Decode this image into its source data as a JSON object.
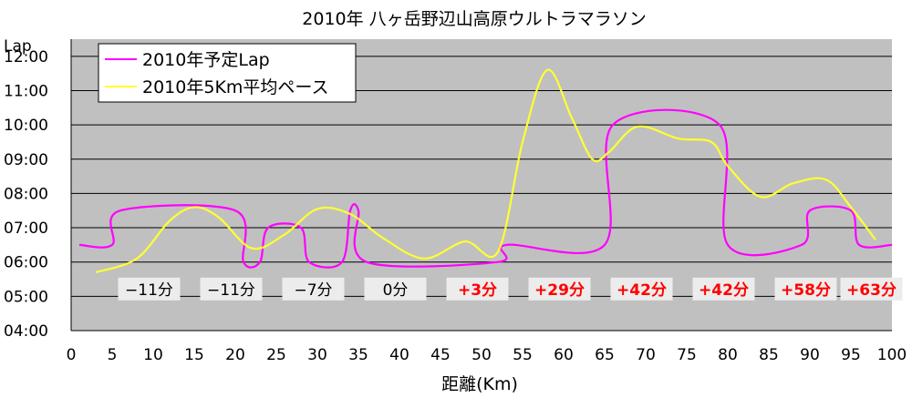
{
  "chart_data": {
    "type": "line",
    "title": "2010年 八ヶ岳野辺山高原ウルトラマラソン",
    "xlabel": "距離(Km)",
    "ylabel": "Lap",
    "xlim": [
      0,
      100
    ],
    "ylim": [
      4,
      12.5
    ],
    "x_ticks": [
      "0",
      "5",
      "10",
      "15",
      "20",
      "25",
      "30",
      "35",
      "40",
      "45",
      "50",
      "55",
      "60",
      "65",
      "70",
      "75",
      "80",
      "85",
      "90",
      "95",
      "100"
    ],
    "y_ticks": [
      "04:00",
      "05:00",
      "06:00",
      "07:00",
      "08:00",
      "09:00",
      "10:00",
      "11:00",
      "12:00"
    ],
    "grid": true,
    "legend_position": "top-left",
    "series": [
      {
        "name": "2010年予定Lap",
        "color": "#ff00ff",
        "points": [
          [
            1,
            6.5
          ],
          [
            5,
            6.5
          ],
          [
            6,
            7.5
          ],
          [
            20,
            7.5
          ],
          [
            21,
            6.0
          ],
          [
            23,
            6.0
          ],
          [
            24,
            7.0
          ],
          [
            28,
            7.0
          ],
          [
            29,
            6.0
          ],
          [
            33,
            6.0
          ],
          [
            34,
            7.5
          ],
          [
            35,
            7.5
          ],
          [
            36,
            6.0
          ],
          [
            52,
            6.0
          ],
          [
            53,
            6.5
          ],
          [
            65,
            6.5
          ],
          [
            66,
            10.0
          ],
          [
            79,
            10.0
          ],
          [
            80,
            6.5
          ],
          [
            89,
            6.5
          ],
          [
            90,
            7.5
          ],
          [
            95,
            7.5
          ],
          [
            96,
            6.5
          ],
          [
            100,
            6.5
          ]
        ]
      },
      {
        "name": "2010年5Km平均ペース",
        "color": "#ffff33",
        "points": [
          [
            3,
            5.7
          ],
          [
            8,
            6.1
          ],
          [
            12,
            7.2
          ],
          [
            15,
            7.6
          ],
          [
            18,
            7.3
          ],
          [
            22,
            6.4
          ],
          [
            26,
            6.8
          ],
          [
            30,
            7.55
          ],
          [
            34,
            7.4
          ],
          [
            38,
            6.7
          ],
          [
            43,
            6.1
          ],
          [
            48,
            6.6
          ],
          [
            52,
            6.3
          ],
          [
            55,
            9.5
          ],
          [
            58,
            11.6
          ],
          [
            61,
            10.2
          ],
          [
            63.5,
            9.0
          ],
          [
            65.5,
            9.2
          ],
          [
            69,
            9.95
          ],
          [
            74,
            9.6
          ],
          [
            78,
            9.5
          ],
          [
            80,
            8.8
          ],
          [
            84,
            7.9
          ],
          [
            88,
            8.3
          ],
          [
            92,
            8.4
          ],
          [
            95,
            7.6
          ],
          [
            98,
            6.65
          ]
        ]
      }
    ],
    "annotations": [
      {
        "text": "−11分",
        "x": 9.5,
        "y": 5.2,
        "color": "#000000"
      },
      {
        "text": "−11分",
        "x": 19.5,
        "y": 5.2,
        "color": "#000000"
      },
      {
        "text": "−7分",
        "x": 29.5,
        "y": 5.2,
        "color": "#000000"
      },
      {
        "text": "0分",
        "x": 39.5,
        "y": 5.2,
        "color": "#000000"
      },
      {
        "text": "+3分",
        "x": 49.5,
        "y": 5.2,
        "color": "#ff0000"
      },
      {
        "text": "+29分",
        "x": 59.5,
        "y": 5.2,
        "color": "#ff0000"
      },
      {
        "text": "+42分",
        "x": 69.5,
        "y": 5.2,
        "color": "#ff0000"
      },
      {
        "text": "+42分",
        "x": 79.5,
        "y": 5.2,
        "color": "#ff0000"
      },
      {
        "text": "+58分",
        "x": 89.5,
        "y": 5.2,
        "color": "#ff0000"
      },
      {
        "text": "+63分",
        "x": 97.5,
        "y": 5.2,
        "color": "#ff0000"
      }
    ]
  }
}
